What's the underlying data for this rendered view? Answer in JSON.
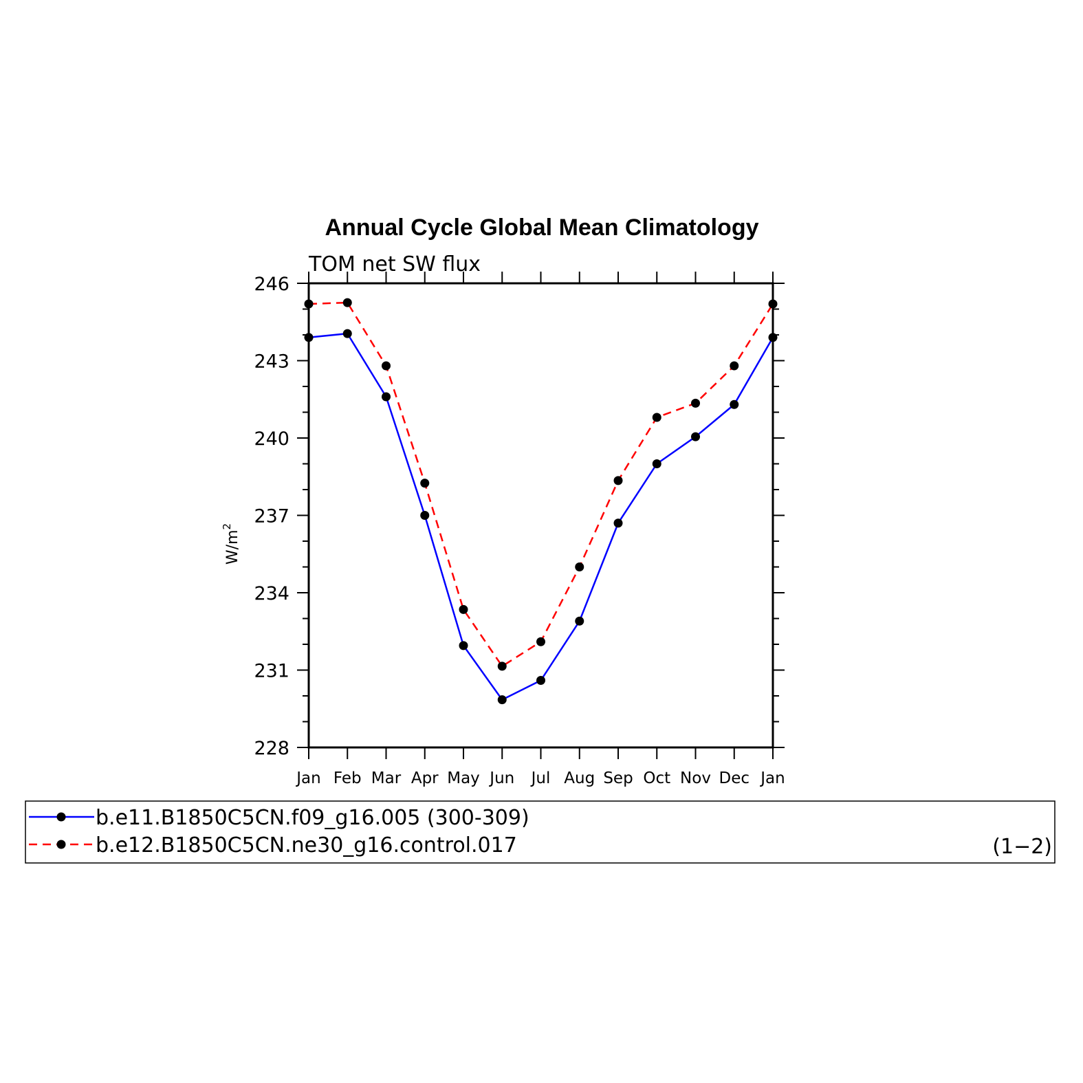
{
  "chart_data": {
    "type": "line",
    "title": "Annual Cycle Global Mean Climatology",
    "subtitle": "TOM net SW flux",
    "ylabel": "W/m",
    "ylabel_sup": "2",
    "ylim": [
      228,
      246
    ],
    "yticks": [
      228,
      231,
      234,
      237,
      240,
      243,
      246
    ],
    "categories": [
      "Jan",
      "Feb",
      "Mar",
      "Apr",
      "May",
      "Jun",
      "Jul",
      "Aug",
      "Sep",
      "Oct",
      "Nov",
      "Dec",
      "Jan"
    ],
    "series": [
      {
        "name": "b.e11.B1850C5CN.f09_g16.005 (300-309)",
        "color": "#0000ff",
        "dash": "solid",
        "values": [
          243.9,
          244.05,
          241.6,
          237.0,
          231.95,
          229.85,
          230.6,
          232.9,
          236.7,
          239.0,
          240.05,
          241.3,
          243.9
        ]
      },
      {
        "name": "b.e12.B1850C5CN.ne30_g16.control.017",
        "color": "#ff0000",
        "dash": "dashed",
        "values": [
          245.2,
          245.25,
          242.8,
          238.25,
          233.35,
          231.15,
          232.1,
          235.0,
          238.35,
          240.8,
          241.35,
          242.8,
          245.2
        ]
      }
    ],
    "legend_tag": "(1−2)",
    "grid": false
  }
}
